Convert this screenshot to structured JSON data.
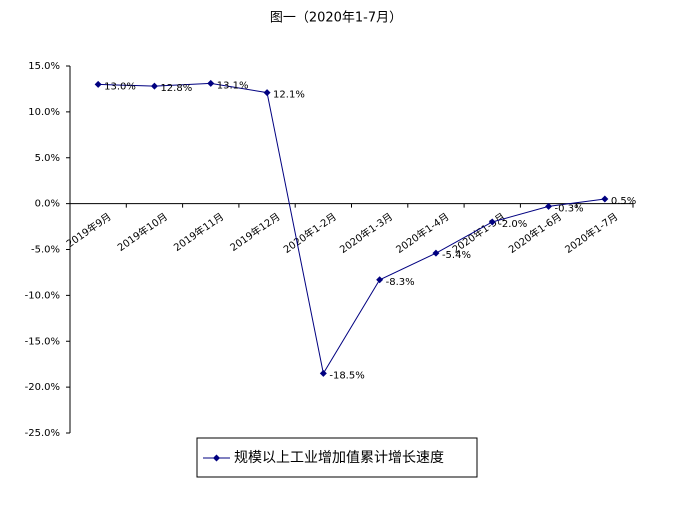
{
  "chart_data": {
    "type": "line",
    "title": "图一（2020年1-7月）",
    "categories": [
      "2019年9月",
      "2019年10月",
      "2019年11月",
      "2019年12月",
      "2020年1-2月",
      "2020年1-3月",
      "2020年1-4月",
      "2020年1-5月",
      "2020年1-6月",
      "2020年1-7月"
    ],
    "series": [
      {
        "name": "规模以上工业增加值累计增长速度",
        "color": "#000080",
        "values": [
          13.0,
          12.8,
          13.1,
          12.1,
          -18.5,
          -8.3,
          -5.4,
          -2.0,
          -0.3,
          0.5
        ],
        "value_labels": [
          "13.0%",
          "12.8%",
          "13.1%",
          "12.1%",
          "-18.5%",
          "-8.3%",
          "-5.4%",
          "-2.0%",
          "-0.3%",
          "0.5%"
        ]
      }
    ],
    "ylim": [
      -25,
      15
    ],
    "yticks": [
      {
        "value": -25,
        "label": "-25.0%"
      },
      {
        "value": -20,
        "label": "-20.0%"
      },
      {
        "value": -15,
        "label": "-15.0%"
      },
      {
        "value": -10,
        "label": "-10.0%"
      },
      {
        "value": -5,
        "label": "-5.0%"
      },
      {
        "value": 0,
        "label": "0.0%"
      },
      {
        "value": 5,
        "label": "5.0%"
      },
      {
        "value": 10,
        "label": "10.0%"
      },
      {
        "value": 15,
        "label": "15.0%"
      }
    ],
    "legend": "bottom"
  }
}
